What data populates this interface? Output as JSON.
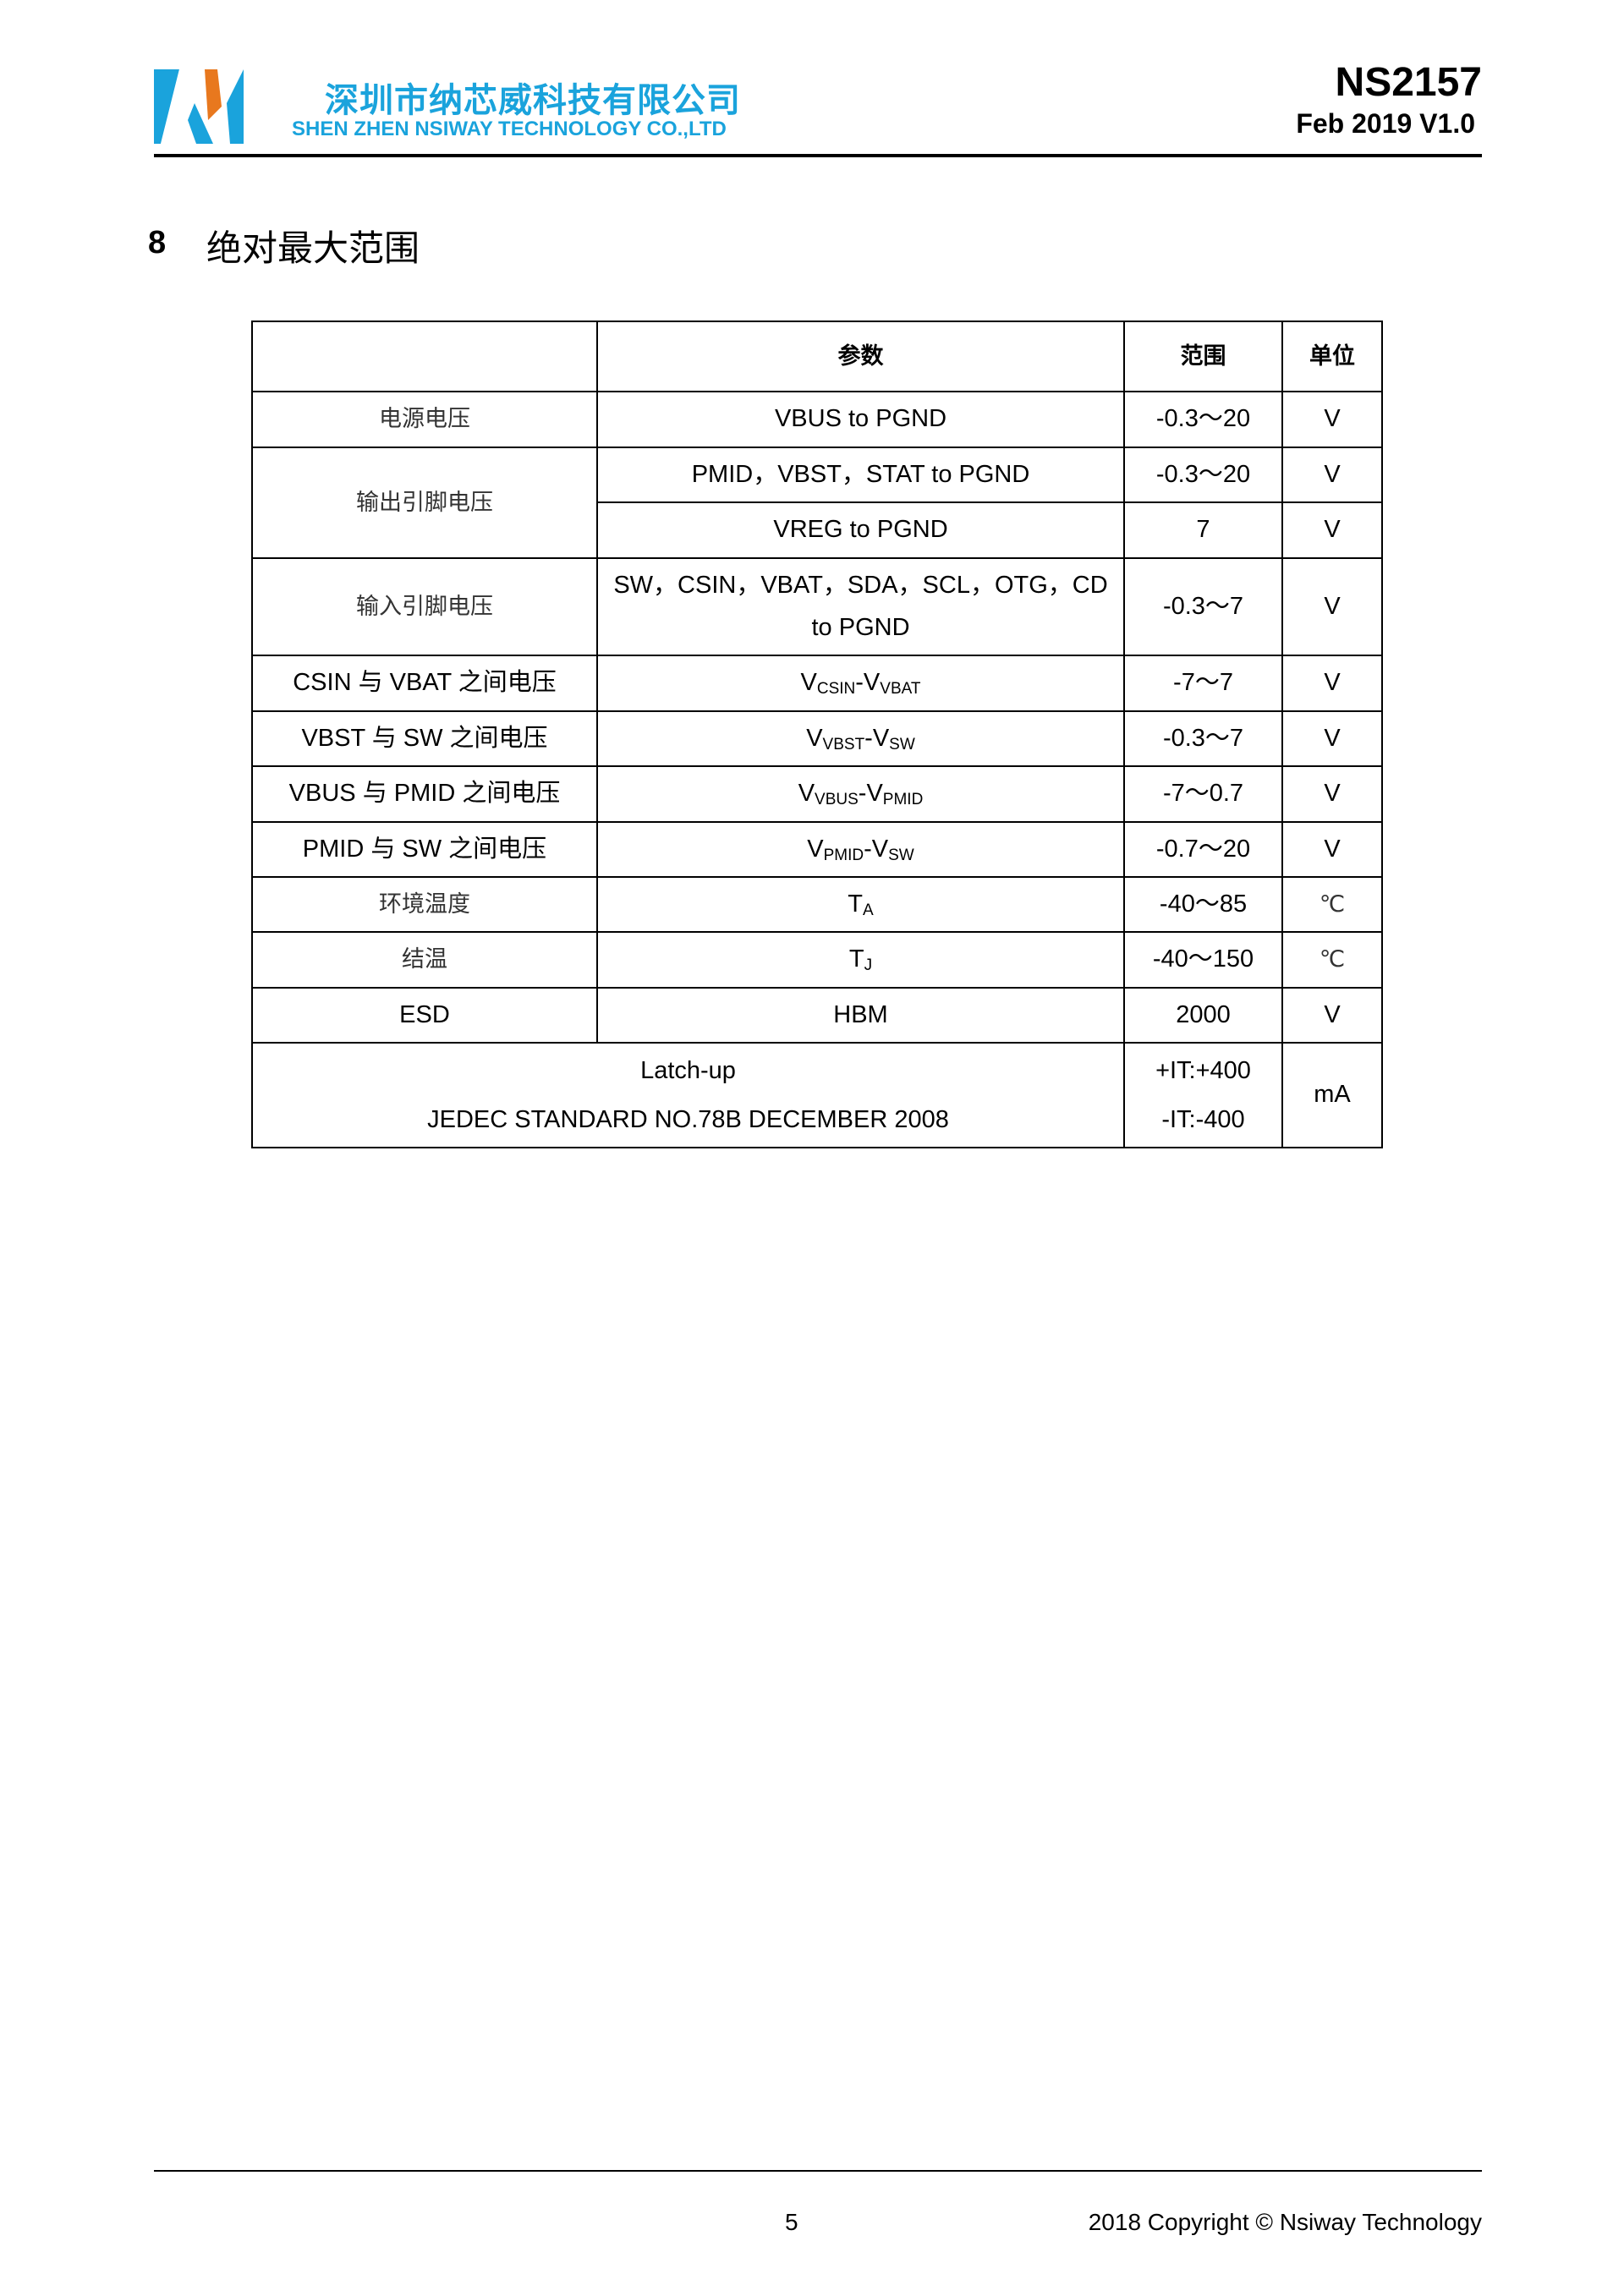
{
  "header": {
    "company_cn": "深圳市纳芯威科技有限公司",
    "company_en": "SHEN ZHEN NSIWAY  TECHNOLOGY CO.,LTD",
    "doc_id": "NS2157",
    "doc_version": "Feb 2019 V1.0",
    "logo_colors": {
      "blue": "#1aa3dc",
      "orange": "#e8781e"
    }
  },
  "section": {
    "number": "8",
    "title": "绝对最大范围"
  },
  "table": {
    "headers": [
      "",
      "参数",
      "范围",
      "单位"
    ],
    "rows": [
      {
        "label": "电源电压",
        "param": "VBUS to PGND",
        "range": "-0.3～20",
        "unit": "V"
      },
      {
        "label": "输出引脚电压",
        "param": "PMID，VBST，STAT to PGND",
        "range": "-0.3～20",
        "unit": "V"
      },
      {
        "param": "VREG to PGND",
        "range": "7",
        "unit": "V"
      },
      {
        "label": "输入引脚电压",
        "param": "SW，CSIN，VBAT，SDA，SCL，OTG，CD",
        "param2": "to PGND",
        "range": "-0.3～7",
        "unit": "V"
      },
      {
        "label": "CSIN 与 VBAT 之间电压",
        "v1": "V",
        "s1": "CSIN",
        "v2": "-V",
        "s2": "VBAT",
        "range": "-7～7",
        "unit": "V"
      },
      {
        "label": "VBST 与 SW 之间电压",
        "v1": "V",
        "s1": "VBST",
        "v2": "-V",
        "s2": "SW",
        "range": "-0.3～7",
        "unit": "V"
      },
      {
        "label": "VBUS 与 PMID 之间电压",
        "v1": "V",
        "s1": "VBUS",
        "v2": "-V",
        "s2": "PMID",
        "range": "-7～0.7",
        "unit": "V"
      },
      {
        "label": "PMID 与 SW 之间电压",
        "v1": "V",
        "s1": "PMID",
        "v2": "-V",
        "s2": "SW",
        "range": "-0.7～20",
        "unit": "V"
      },
      {
        "label": "环境温度",
        "v1": "T",
        "s1": "A",
        "range": "-40～85",
        "unit": "℃"
      },
      {
        "label": "结温",
        "v1": "T",
        "s1": "J",
        "range": "-40～150",
        "unit": "℃"
      },
      {
        "label": "ESD",
        "param": "HBM",
        "range": "2000",
        "unit": "V"
      },
      {
        "label": "Latch-up",
        "label2": "JEDEC STANDARD NO.78B DECEMBER 2008",
        "range": "+IT:+400",
        "range2": "-IT:-400",
        "unit": "mA"
      }
    ]
  },
  "footer": {
    "page": "5",
    "copyright": "2018 Copyright © Nsiway Technology"
  }
}
